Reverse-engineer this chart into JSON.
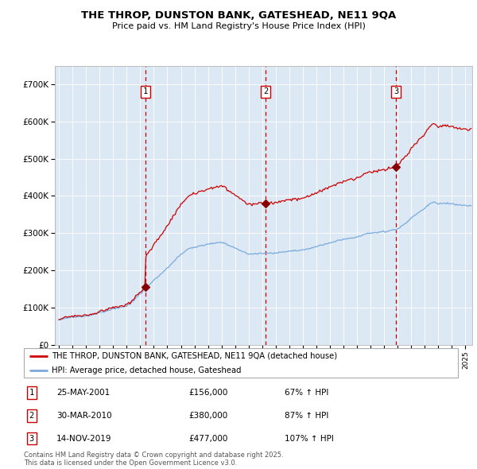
{
  "title": "THE THROP, DUNSTON BANK, GATESHEAD, NE11 9QA",
  "subtitle": "Price paid vs. HM Land Registry's House Price Index (HPI)",
  "background_color": "#dce6f0",
  "plot_bg_color": "#dce9f5",
  "red_line_color": "#cc0000",
  "blue_line_color": "#7aaadd",
  "sale_marker_color": "#880000",
  "dashed_line_color": "#cc0000",
  "ylim": [
    0,
    750000
  ],
  "yticks": [
    0,
    100000,
    200000,
    300000,
    400000,
    500000,
    600000,
    700000
  ],
  "ytick_labels": [
    "£0",
    "£100K",
    "£200K",
    "£300K",
    "£400K",
    "£500K",
    "£600K",
    "£700K"
  ],
  "sale1": {
    "label": "1",
    "date": "25-MAY-2001",
    "price": 156000,
    "hpi_pct": "67% ↑ HPI",
    "x_year": 2001.39
  },
  "sale2": {
    "label": "2",
    "date": "30-MAR-2010",
    "price": 380000,
    "hpi_pct": "87% ↑ HPI",
    "x_year": 2010.24
  },
  "sale3": {
    "label": "3",
    "date": "14-NOV-2019",
    "price": 477000,
    "hpi_pct": "107% ↑ HPI",
    "x_year": 2019.87
  },
  "legend_line1": "THE THROP, DUNSTON BANK, GATESHEAD, NE11 9QA (detached house)",
  "legend_line2": "HPI: Average price, detached house, Gateshead",
  "footnote": "Contains HM Land Registry data © Crown copyright and database right 2025.\nThis data is licensed under the Open Government Licence v3.0.",
  "xlim_start": 1994.7,
  "xlim_end": 2025.5
}
